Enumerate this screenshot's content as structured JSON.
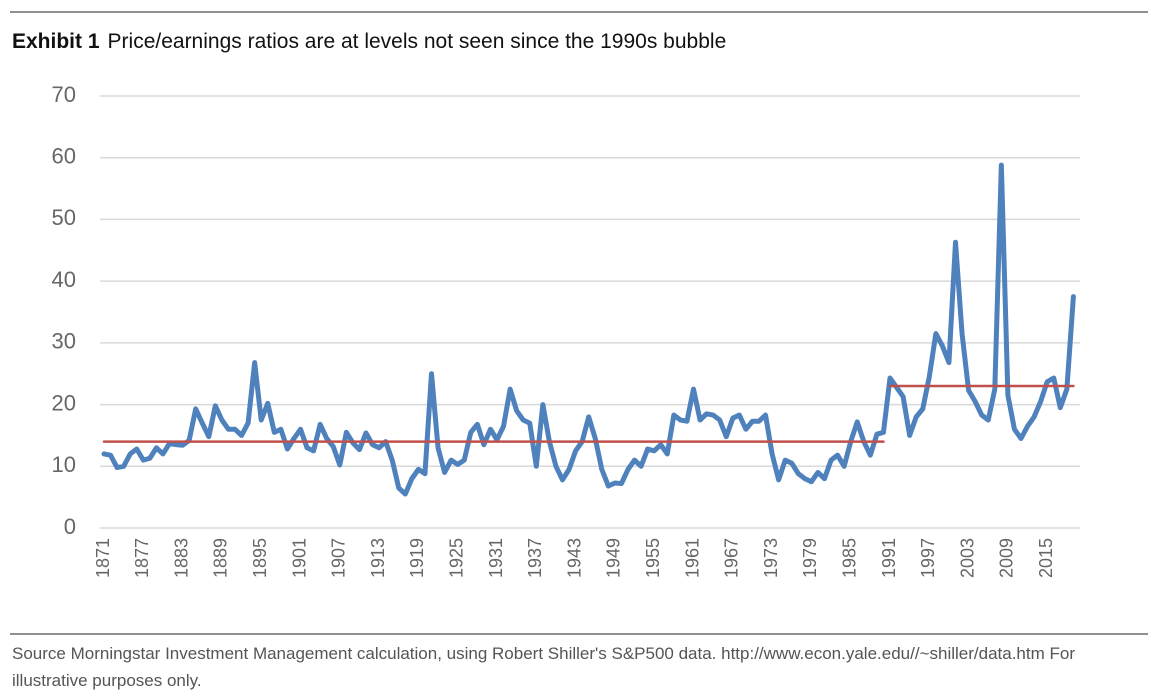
{
  "chart_data": {
    "type": "line",
    "title_lead": "Exhibit 1",
    "title": "Price/earnings ratios are at levels not seen since the 1990s bubble",
    "source": "Source Morningstar Investment Management calculation, using Robert Shiller's S&P500 data. http://www.econ.yale.edu//~shiller/data.htm For illustrative purposes only.",
    "categories": [
      "1871",
      null,
      null,
      null,
      null,
      null,
      "1877",
      null,
      null,
      null,
      null,
      null,
      "1883",
      null,
      null,
      null,
      null,
      null,
      "1889",
      null,
      null,
      null,
      null,
      null,
      "1895",
      null,
      null,
      null,
      null,
      null,
      "1901",
      null,
      null,
      null,
      null,
      null,
      "1907",
      null,
      null,
      null,
      null,
      null,
      "1913",
      null,
      null,
      null,
      null,
      null,
      "1919",
      null,
      null,
      null,
      null,
      null,
      "1925",
      null,
      null,
      null,
      null,
      null,
      "1931",
      null,
      null,
      null,
      null,
      null,
      "1937",
      null,
      null,
      null,
      null,
      null,
      "1943",
      null,
      null,
      null,
      null,
      null,
      "1949",
      null,
      null,
      null,
      null,
      null,
      "1955",
      null,
      null,
      null,
      null,
      null,
      "1961",
      null,
      null,
      null,
      null,
      null,
      "1967",
      null,
      null,
      null,
      null,
      null,
      "1973",
      null,
      null,
      null,
      null,
      null,
      "1979",
      null,
      null,
      null,
      null,
      null,
      "1985",
      null,
      null,
      null,
      null,
      null,
      "1991",
      null,
      null,
      null,
      null,
      null,
      "1997",
      null,
      null,
      null,
      null,
      null,
      "2003",
      null,
      null,
      null,
      null,
      null,
      "2009",
      null,
      null,
      null,
      null,
      null,
      "2015",
      null,
      null,
      null,
      null
    ],
    "series": [
      {
        "color": "#4f81bd",
        "width": 5,
        "values": [
          12,
          11.8,
          9.8,
          10,
          12,
          12.8,
          11,
          11.3,
          13,
          12,
          13.7,
          13.5,
          13.4,
          14.2,
          19.3,
          17,
          14.8,
          19.8,
          17.5,
          16,
          16,
          15,
          17,
          26.8,
          17.5,
          20.2,
          15.5,
          16,
          12.8,
          14.5,
          16,
          13,
          12.5,
          16.8,
          14.5,
          13.2,
          10.2,
          15.5,
          13.8,
          12.7,
          15.4,
          13.5,
          13,
          14,
          11,
          6.5,
          5.5,
          8,
          9.5,
          8.8,
          25,
          13,
          9,
          11,
          10.3,
          11,
          15.5,
          16.8,
          13.5,
          16,
          14.3,
          16.5,
          22.5,
          19,
          17.5,
          17,
          10,
          20,
          14,
          10,
          7.8,
          9.5,
          12.5,
          14,
          18,
          14.5,
          9.5,
          6.8,
          7.3,
          7.2,
          9.5,
          11,
          10,
          12.8,
          12.5,
          13.5,
          12,
          18.3,
          17.5,
          17.3,
          22.5,
          17.5,
          18.5,
          18.3,
          17.5,
          14.8,
          17.8,
          18.3,
          16,
          17.3,
          17.3,
          18.3,
          12,
          7.8,
          11,
          10.5,
          8.8,
          8,
          7.5,
          9,
          8,
          11,
          11.8,
          10,
          14,
          17.2,
          14,
          11.8,
          15.2,
          15.5,
          24.3,
          22.8,
          21.3,
          15,
          18,
          19.3,
          24.5,
          31.5,
          29.5,
          26.8,
          46.3,
          31.5,
          22.3,
          20.5,
          18.3,
          17.5,
          22.5,
          58.8,
          21.5,
          16,
          14.5,
          16.5,
          18,
          20.5,
          23.7,
          24.3,
          19.5,
          22.5,
          37.5
        ]
      },
      {
        "color": "#c0504d",
        "width": 2.5,
        "values": [
          14,
          14,
          14,
          14,
          14,
          14,
          14,
          14,
          14,
          14,
          14,
          14,
          14,
          14,
          14,
          14,
          14,
          14,
          14,
          14,
          14,
          14,
          14,
          14,
          14,
          14,
          14,
          14,
          14,
          14,
          14,
          14,
          14,
          14,
          14,
          14,
          14,
          14,
          14,
          14,
          14,
          14,
          14,
          14,
          14,
          14,
          14,
          14,
          14,
          14,
          14,
          14,
          14,
          14,
          14,
          14,
          14,
          14,
          14,
          14,
          14,
          14,
          14,
          14,
          14,
          14,
          14,
          14,
          14,
          14,
          14,
          14,
          14,
          14,
          14,
          14,
          14,
          14,
          14,
          14,
          14,
          14,
          14,
          14,
          14,
          14,
          14,
          14,
          14,
          14,
          14,
          14,
          14,
          14,
          14,
          14,
          14,
          14,
          14,
          14,
          14,
          14,
          14,
          14,
          14,
          14,
          14,
          14,
          14,
          14,
          14,
          14,
          14,
          14,
          14,
          14,
          14,
          14,
          14,
          14,
          null,
          null,
          null,
          null,
          null,
          null,
          null,
          null,
          null,
          null,
          null,
          null,
          null,
          null,
          null,
          null,
          null,
          null,
          null,
          null,
          null,
          null,
          null,
          null,
          null,
          null,
          null,
          null,
          null
        ]
      },
      {
        "color": "#c0504d",
        "width": 2.5,
        "values": [
          null,
          null,
          null,
          null,
          null,
          null,
          null,
          null,
          null,
          null,
          null,
          null,
          null,
          null,
          null,
          null,
          null,
          null,
          null,
          null,
          null,
          null,
          null,
          null,
          null,
          null,
          null,
          null,
          null,
          null,
          null,
          null,
          null,
          null,
          null,
          null,
          null,
          null,
          null,
          null,
          null,
          null,
          null,
          null,
          null,
          null,
          null,
          null,
          null,
          null,
          null,
          null,
          null,
          null,
          null,
          null,
          null,
          null,
          null,
          null,
          null,
          null,
          null,
          null,
          null,
          null,
          null,
          null,
          null,
          null,
          null,
          null,
          null,
          null,
          null,
          null,
          null,
          null,
          null,
          null,
          null,
          null,
          null,
          null,
          null,
          null,
          null,
          null,
          null,
          null,
          null,
          null,
          null,
          null,
          null,
          null,
          null,
          null,
          null,
          null,
          null,
          null,
          null,
          null,
          null,
          null,
          null,
          null,
          null,
          null,
          null,
          null,
          null,
          null,
          null,
          null,
          null,
          null,
          null,
          null,
          23,
          23,
          23,
          23,
          23,
          23,
          23,
          23,
          23,
          23,
          23,
          23,
          23,
          23,
          23,
          23,
          23,
          23,
          23,
          23,
          23,
          23,
          23,
          23,
          23,
          23,
          23,
          23,
          23
        ]
      }
    ],
    "ylim": [
      0,
      70
    ],
    "yticks": [
      0,
      10,
      20,
      30,
      40,
      50,
      60,
      70
    ],
    "grid": true
  }
}
